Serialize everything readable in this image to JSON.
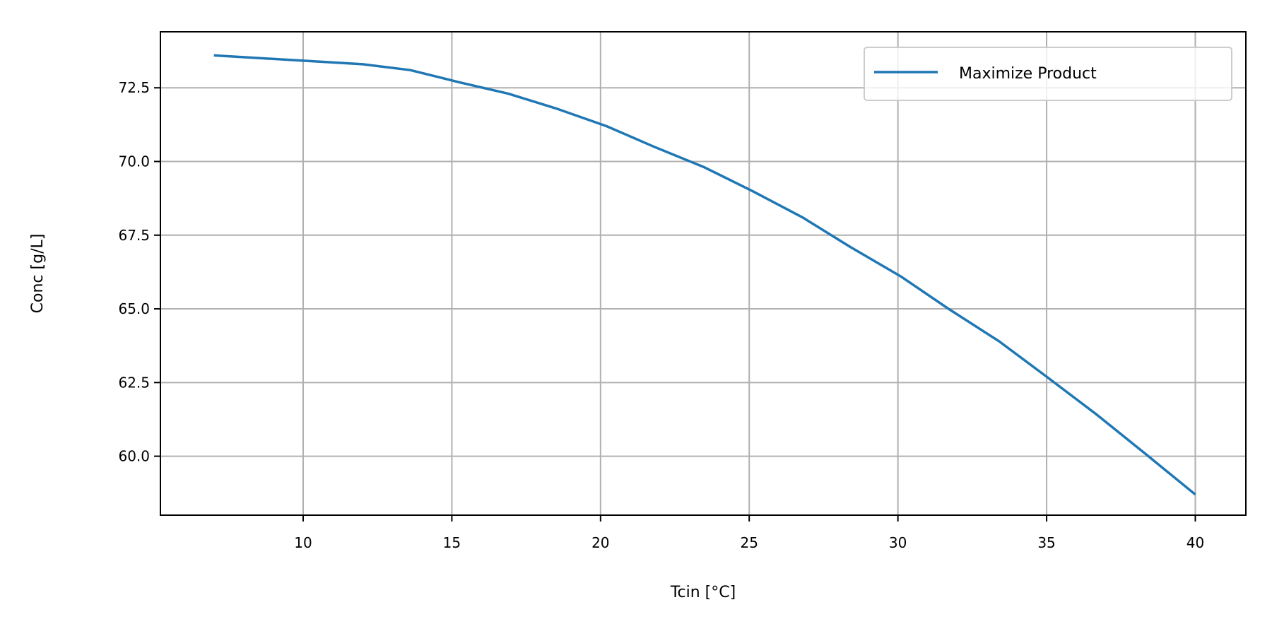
{
  "chart_data": {
    "type": "line",
    "xlabel": "Tcin [°C]",
    "ylabel": "Conc [g/L]",
    "xlim": [
      5.2,
      41.7
    ],
    "ylim": [
      58.0,
      74.4
    ],
    "xticks": [
      10,
      15,
      20,
      25,
      30,
      35,
      40
    ],
    "xtick_labels": [
      "10",
      "15",
      "20",
      "25",
      "30",
      "35",
      "40"
    ],
    "yticks": [
      60.0,
      62.5,
      65.0,
      67.5,
      70.0,
      72.5
    ],
    "ytick_labels": [
      "60.0",
      "62.5",
      "65.0",
      "67.5",
      "70.0",
      "72.5"
    ],
    "grid": true,
    "legend": {
      "position": "top-right"
    },
    "series": [
      {
        "name": "Maximize Product",
        "color": "#1f77b4",
        "x": [
          7.0,
          12.0,
          13.6,
          15.2,
          16.9,
          18.5,
          20.2,
          21.8,
          23.5,
          25.1,
          26.8,
          28.4,
          30.1,
          31.7,
          33.4,
          35.0,
          36.7,
          38.3,
          40.0
        ],
        "y": [
          73.6,
          73.3,
          73.1,
          72.7,
          72.3,
          71.8,
          71.2,
          70.5,
          69.8,
          69.0,
          68.1,
          67.1,
          66.1,
          65.0,
          63.9,
          62.7,
          61.4,
          60.1,
          58.7
        ]
      }
    ]
  }
}
